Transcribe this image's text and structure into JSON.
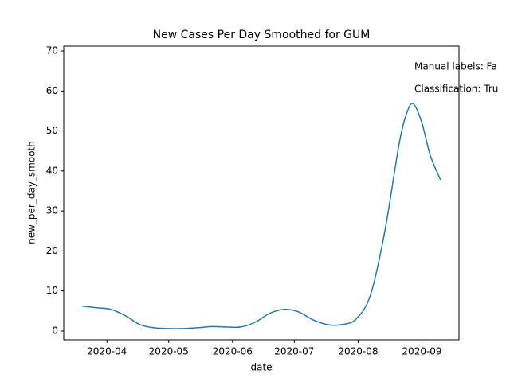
{
  "chart_data": {
    "type": "line",
    "title": "New Cases Per Day Smoothed for GUM",
    "xlabel": "date",
    "ylabel": "new_per_day_smooth",
    "annotations": [
      "Manual labels: Fa",
      "Classification: Tru"
    ],
    "x": [
      "2020-03-20",
      "2020-03-27",
      "2020-04-03",
      "2020-04-10",
      "2020-04-17",
      "2020-04-24",
      "2020-05-01",
      "2020-05-08",
      "2020-05-15",
      "2020-05-22",
      "2020-05-29",
      "2020-06-05",
      "2020-06-12",
      "2020-06-19",
      "2020-06-26",
      "2020-07-03",
      "2020-07-10",
      "2020-07-17",
      "2020-07-24",
      "2020-07-31",
      "2020-08-07",
      "2020-08-14",
      "2020-08-21",
      "2020-08-25",
      "2020-08-28",
      "2020-09-01",
      "2020-09-05",
      "2020-09-10"
    ],
    "series": [
      {
        "name": "new_per_day_smooth",
        "color": "#1f77b4",
        "values": [
          6.2,
          5.8,
          5.4,
          3.8,
          1.6,
          0.8,
          0.6,
          0.6,
          0.8,
          1.1,
          1.0,
          1.0,
          2.2,
          4.4,
          5.4,
          4.8,
          2.8,
          1.6,
          1.6,
          3.0,
          9,
          25,
          47,
          55,
          56.7,
          52,
          44,
          37.8
        ]
      }
    ],
    "xlim": [
      "2020-03-11",
      "2020-09-19"
    ],
    "xticks": [
      {
        "value": "2020-04-01",
        "label": "2020-04"
      },
      {
        "value": "2020-05-01",
        "label": "2020-05"
      },
      {
        "value": "2020-06-01",
        "label": "2020-06"
      },
      {
        "value": "2020-07-01",
        "label": "2020-07"
      },
      {
        "value": "2020-08-01",
        "label": "2020-08"
      },
      {
        "value": "2020-09-01",
        "label": "2020-09"
      }
    ],
    "ylim": [
      -2.2,
      71.2
    ],
    "yticks": [
      0,
      10,
      20,
      30,
      40,
      50,
      60,
      70
    ],
    "grid": false
  }
}
